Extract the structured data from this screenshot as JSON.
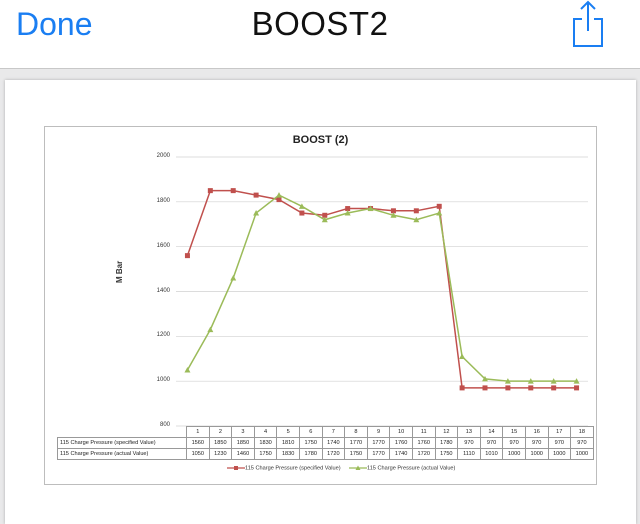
{
  "nav": {
    "done_label": "Done",
    "title": "BOOST2",
    "share_icon": "share-icon"
  },
  "colors": {
    "accent": "#1a7ef2",
    "series_specified": "#c0504d",
    "series_actual": "#9bbb59"
  },
  "chart_data": {
    "type": "line",
    "title": "BOOST (2)",
    "ylabel": "M Bar",
    "xlabel": "",
    "ylim": [
      800,
      2000
    ],
    "yticks": [
      "2000",
      "1800",
      "1600",
      "1400",
      "1200",
      "1000",
      "800"
    ],
    "grid": true,
    "legend": "bottom",
    "categories": [
      "1",
      "2",
      "3",
      "4",
      "5",
      "6",
      "7",
      "8",
      "9",
      "10",
      "11",
      "12",
      "13",
      "14",
      "15",
      "16",
      "17",
      "18"
    ],
    "series": [
      {
        "name": "115 Charge Pressure (specified Value)",
        "marker": "square",
        "values": [
          1560,
          1850,
          1850,
          1830,
          1810,
          1750,
          1740,
          1770,
          1770,
          1760,
          1760,
          1780,
          970,
          970,
          970,
          970,
          970,
          970
        ]
      },
      {
        "name": "115 Charge Pressure (actual Value)",
        "marker": "triangle",
        "values": [
          1050,
          1230,
          1460,
          1750,
          1830,
          1780,
          1720,
          1750,
          1770,
          1740,
          1720,
          1750,
          1110,
          1010,
          1000,
          1000,
          1000,
          1000
        ]
      }
    ]
  }
}
